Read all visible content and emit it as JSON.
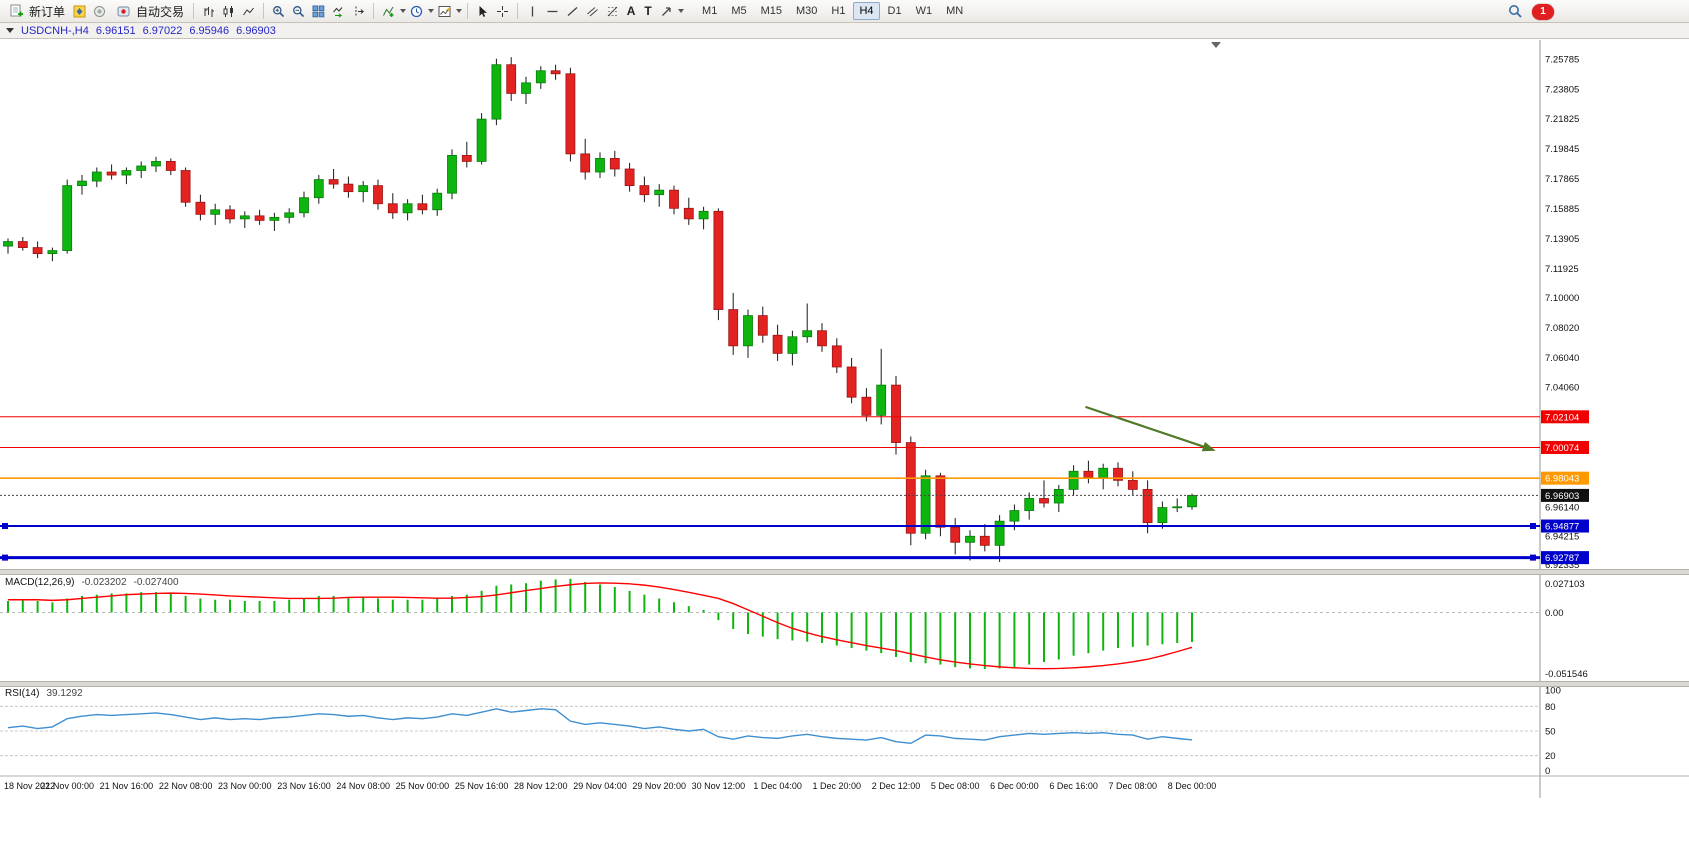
{
  "toolbar": {
    "new_order_label": "新订单",
    "algo_trading_label": "自动交易",
    "tool_a": "A",
    "tool_t": "T",
    "timeframes": [
      "M1",
      "M5",
      "M15",
      "M30",
      "H1",
      "H4",
      "D1",
      "W1",
      "MN"
    ],
    "active_timeframe": "H4",
    "notification_count": "1"
  },
  "chart_header": {
    "title": "USDCNH-,H4",
    "open": "6.96151",
    "high": "6.97022",
    "low": "6.95946",
    "close": "6.96903"
  },
  "chart_data": [
    {
      "type": "candlestick",
      "symbol": "USDCNH-",
      "timeframe": "H4",
      "ylim": [
        6.921,
        7.2677
      ],
      "colors": {
        "bull": "#0fb50f",
        "bull_border": "#077d07",
        "bear": "#e32222",
        "bear_border": "#9c1414",
        "wick": "#1a1a1a"
      },
      "y_labels": [
        "7.25785",
        "7.23805",
        "7.21825",
        "7.19845",
        "7.17865",
        "7.15885",
        "7.13905",
        "7.11925",
        "7.10000",
        "7.08020",
        "7.06040",
        "7.04060",
        "6.96140",
        "6.94215",
        "6.92335"
      ],
      "x_labels": [
        "18 Nov 2022",
        "21 Nov 00:00",
        "21 Nov 16:00",
        "22 Nov 08:00",
        "23 Nov 00:00",
        "23 Nov 16:00",
        "24 Nov 08:00",
        "25 Nov 00:00",
        "25 Nov 16:00",
        "28 Nov 12:00",
        "29 Nov 04:00",
        "29 Nov 20:00",
        "30 Nov 12:00",
        "1 Dec 04:00",
        "1 Dec 20:00",
        "2 Dec 12:00",
        "5 Dec 08:00",
        "6 Dec 00:00",
        "6 Dec 16:00",
        "7 Dec 08:00",
        "8 Dec 00:00"
      ],
      "lines": [
        {
          "price": 7.02104,
          "label": "7.02104",
          "color": "#f20000",
          "width": 1,
          "style": "solid"
        },
        {
          "price": 7.00074,
          "label": "7.00074",
          "color": "#f20000",
          "width": 1,
          "style": "solid"
        },
        {
          "price": 6.98043,
          "label": "6.98043",
          "color": "#ff9900",
          "width": 1.6,
          "style": "solid"
        },
        {
          "price": 6.96903,
          "label": "6.96903",
          "color": "#444444",
          "badge": "#111111",
          "width": 1,
          "style": "dotted"
        },
        {
          "price": 6.94877,
          "label": "6.94877",
          "color": "#0000cc",
          "width": 2,
          "style": "solid",
          "handles": true
        },
        {
          "price": 6.92787,
          "label": "6.92787",
          "color": "#0000cc",
          "width": 3,
          "style": "solid",
          "handles": true
        }
      ],
      "arrow": {
        "from": {
          "index": 72.8,
          "price": 7.0276
        },
        "to": {
          "index": 81.6,
          "price": 6.9986
        },
        "color": "#4f7a28"
      },
      "candles": [
        [
          7.134,
          7.139,
          7.129,
          7.137
        ],
        [
          7.137,
          7.14,
          7.131,
          7.133
        ],
        [
          7.133,
          7.137,
          7.126,
          7.129
        ],
        [
          7.129,
          7.133,
          7.124,
          7.131
        ],
        [
          7.131,
          7.178,
          7.129,
          7.174
        ],
        [
          7.174,
          7.181,
          7.168,
          7.177
        ],
        [
          7.177,
          7.186,
          7.173,
          7.183
        ],
        [
          7.183,
          7.188,
          7.178,
          7.181
        ],
        [
          7.181,
          7.186,
          7.175,
          7.184
        ],
        [
          7.184,
          7.19,
          7.179,
          7.187
        ],
        [
          7.187,
          7.193,
          7.183,
          7.19
        ],
        [
          7.19,
          7.192,
          7.181,
          7.184
        ],
        [
          7.184,
          7.186,
          7.16,
          7.163
        ],
        [
          7.163,
          7.168,
          7.151,
          7.155
        ],
        [
          7.155,
          7.162,
          7.148,
          7.158
        ],
        [
          7.158,
          7.161,
          7.149,
          7.152
        ],
        [
          7.152,
          7.157,
          7.146,
          7.154
        ],
        [
          7.154,
          7.158,
          7.148,
          7.151
        ],
        [
          7.151,
          7.156,
          7.144,
          7.153
        ],
        [
          7.153,
          7.159,
          7.149,
          7.156
        ],
        [
          7.156,
          7.17,
          7.153,
          7.166
        ],
        [
          7.166,
          7.181,
          7.162,
          7.178
        ],
        [
          7.178,
          7.185,
          7.172,
          7.175
        ],
        [
          7.175,
          7.18,
          7.166,
          7.17
        ],
        [
          7.17,
          7.177,
          7.163,
          7.174
        ],
        [
          7.174,
          7.178,
          7.158,
          7.162
        ],
        [
          7.162,
          7.169,
          7.152,
          7.156
        ],
        [
          7.156,
          7.165,
          7.151,
          7.162
        ],
        [
          7.162,
          7.168,
          7.155,
          7.158
        ],
        [
          7.158,
          7.172,
          7.154,
          7.169
        ],
        [
          7.169,
          7.198,
          7.165,
          7.194
        ],
        [
          7.194,
          7.203,
          7.186,
          7.19
        ],
        [
          7.19,
          7.222,
          7.188,
          7.218
        ],
        [
          7.218,
          7.258,
          7.214,
          7.254
        ],
        [
          7.254,
          7.259,
          7.23,
          7.235
        ],
        [
          7.235,
          7.246,
          7.228,
          7.242
        ],
        [
          7.242,
          7.253,
          7.238,
          7.25
        ],
        [
          7.25,
          7.254,
          7.244,
          7.248
        ],
        [
          7.248,
          7.252,
          7.19,
          7.195
        ],
        [
          7.195,
          7.205,
          7.178,
          7.183
        ],
        [
          7.183,
          7.196,
          7.179,
          7.192
        ],
        [
          7.192,
          7.197,
          7.18,
          7.185
        ],
        [
          7.185,
          7.189,
          7.17,
          7.174
        ],
        [
          7.174,
          7.18,
          7.163,
          7.168
        ],
        [
          7.168,
          7.175,
          7.16,
          7.171
        ],
        [
          7.171,
          7.174,
          7.155,
          7.159
        ],
        [
          7.159,
          7.166,
          7.148,
          7.152
        ],
        [
          7.152,
          7.16,
          7.145,
          7.157
        ],
        [
          7.157,
          7.159,
          7.085,
          7.092
        ],
        [
          7.092,
          7.103,
          7.062,
          7.068
        ],
        [
          7.068,
          7.092,
          7.06,
          7.088
        ],
        [
          7.088,
          7.094,
          7.07,
          7.075
        ],
        [
          7.075,
          7.082,
          7.058,
          7.063
        ],
        [
          7.063,
          7.078,
          7.055,
          7.074
        ],
        [
          7.074,
          7.096,
          7.07,
          7.078
        ],
        [
          7.078,
          7.083,
          7.064,
          7.068
        ],
        [
          7.068,
          7.073,
          7.05,
          7.054
        ],
        [
          7.054,
          7.06,
          7.03,
          7.034
        ],
        [
          7.034,
          7.04,
          7.018,
          7.022
        ],
        [
          7.022,
          7.066,
          7.016,
          7.042
        ],
        [
          7.042,
          7.048,
          6.996,
          7.004
        ],
        [
          7.004,
          7.008,
          6.936,
          6.944
        ],
        [
          6.944,
          6.986,
          6.94,
          6.982
        ],
        [
          6.982,
          6.984,
          6.942,
          6.948
        ],
        [
          6.948,
          6.954,
          6.93,
          6.938
        ],
        [
          6.938,
          6.946,
          6.926,
          6.942
        ],
        [
          6.942,
          6.95,
          6.932,
          6.936
        ],
        [
          6.936,
          6.956,
          6.925,
          6.952
        ],
        [
          6.952,
          6.963,
          6.946,
          6.959
        ],
        [
          6.959,
          6.971,
          6.953,
          6.967
        ],
        [
          6.967,
          6.979,
          6.961,
          6.964
        ],
        [
          6.964,
          6.976,
          6.958,
          6.973
        ],
        [
          6.973,
          6.989,
          6.969,
          6.985
        ],
        [
          6.985,
          6.992,
          6.977,
          6.981
        ],
        [
          6.981,
          6.99,
          6.973,
          6.987
        ],
        [
          6.987,
          6.991,
          6.975,
          6.979
        ],
        [
          6.979,
          6.985,
          6.969,
          6.973
        ],
        [
          6.973,
          6.979,
          6.944,
          6.951
        ],
        [
          6.951,
          6.965,
          6.947,
          6.961
        ],
        [
          6.961,
          6.967,
          6.958,
          6.9615
        ],
        [
          6.9615,
          6.9702,
          6.9595,
          6.969
        ]
      ]
    },
    {
      "type": "bar",
      "indicator_label": "MACD(12,26,9)",
      "value_main": "-0.023202",
      "value_signal": "-0.027400",
      "ylim": [
        -0.051546,
        0.027103
      ],
      "axis_labels": [
        "0.027103",
        "0.00",
        "-0.051546"
      ],
      "colors": {
        "hist": "#0fb50f",
        "signal": "#ff0000",
        "zero": "#b8b8b8"
      },
      "histogram": [
        0.009,
        0.01,
        0.009,
        0.008,
        0.011,
        0.013,
        0.014,
        0.015,
        0.015,
        0.016,
        0.016,
        0.015,
        0.013,
        0.011,
        0.01,
        0.01,
        0.009,
        0.009,
        0.009,
        0.01,
        0.011,
        0.013,
        0.013,
        0.012,
        0.012,
        0.011,
        0.01,
        0.01,
        0.01,
        0.011,
        0.013,
        0.014,
        0.017,
        0.021,
        0.022,
        0.023,
        0.025,
        0.026,
        0.0265,
        0.024,
        0.022,
        0.02,
        0.017,
        0.014,
        0.011,
        0.008,
        0.005,
        0.002,
        -0.006,
        -0.013,
        -0.017,
        -0.019,
        -0.021,
        -0.022,
        -0.023,
        -0.024,
        -0.026,
        -0.028,
        -0.03,
        -0.032,
        -0.035,
        -0.039,
        -0.04,
        -0.041,
        -0.043,
        -0.044,
        -0.0445,
        -0.044,
        -0.043,
        -0.041,
        -0.039,
        -0.037,
        -0.034,
        -0.032,
        -0.03,
        -0.028,
        -0.027,
        -0.026,
        -0.025,
        -0.024,
        -0.0232
      ],
      "signal": [
        0.01,
        0.01,
        0.01,
        0.0095,
        0.01,
        0.011,
        0.012,
        0.013,
        0.014,
        0.0145,
        0.015,
        0.0152,
        0.015,
        0.0145,
        0.0138,
        0.013,
        0.0125,
        0.012,
        0.0115,
        0.011,
        0.011,
        0.011,
        0.0112,
        0.0118,
        0.012,
        0.012,
        0.012,
        0.0118,
        0.0115,
        0.0112,
        0.0112,
        0.0118,
        0.0125,
        0.0138,
        0.0155,
        0.0172,
        0.0188,
        0.0205,
        0.0218,
        0.0228,
        0.0232,
        0.023,
        0.0225,
        0.0215,
        0.02,
        0.018,
        0.0158,
        0.0135,
        0.011,
        0.007,
        0.002,
        -0.003,
        -0.008,
        -0.0125,
        -0.016,
        -0.019,
        -0.0215,
        -0.0238,
        -0.026,
        -0.028,
        -0.03,
        -0.0325,
        -0.035,
        -0.0372,
        -0.039,
        -0.0405,
        -0.0418,
        -0.0428,
        -0.0435,
        -0.044,
        -0.0442,
        -0.044,
        -0.0435,
        -0.0428,
        -0.0418,
        -0.0405,
        -0.0388,
        -0.0368,
        -0.034,
        -0.0308,
        -0.0274
      ]
    },
    {
      "type": "line",
      "indicator_label": "RSI(14)",
      "value": "39.1292",
      "ylim": [
        0,
        100
      ],
      "levels": [
        80,
        50,
        20
      ],
      "axis_labels": [
        "100",
        "80",
        "50",
        "20",
        "0"
      ],
      "color": "#3e8ed0",
      "values": [
        54,
        56,
        53,
        55,
        65,
        68,
        70,
        69,
        70,
        71,
        72,
        70,
        67,
        64,
        66,
        64,
        65,
        64,
        66,
        67,
        69,
        71,
        70,
        68,
        69,
        66,
        64,
        66,
        65,
        67,
        71,
        69,
        73,
        77,
        73,
        75,
        77,
        76,
        62,
        58,
        60,
        58,
        56,
        53,
        55,
        52,
        50,
        52,
        43,
        40,
        44,
        42,
        41,
        44,
        46,
        43,
        41,
        40,
        39,
        42,
        37,
        35,
        45,
        44,
        41,
        40,
        39,
        43,
        45,
        47,
        46,
        47,
        48,
        47,
        48,
        46,
        45,
        40,
        43,
        41,
        39.1
      ]
    }
  ]
}
